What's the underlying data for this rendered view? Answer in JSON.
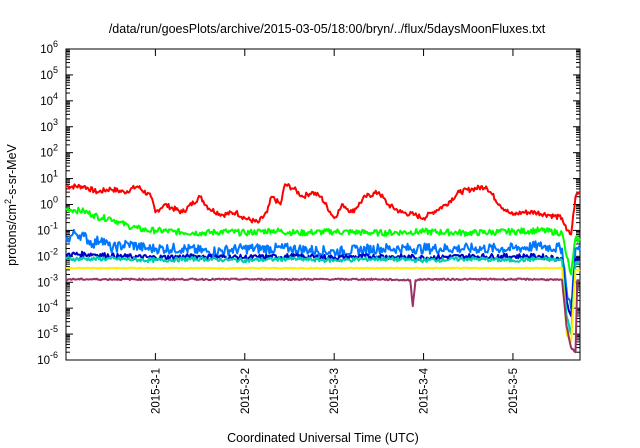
{
  "chart_data": {
    "type": "line",
    "title": "/data/run/goesPlots/archive/2015-03-05/18:00/bryn/../flux/5daysMoonFluxes.txt",
    "xlabel": "Coordinated Universal Time (UTC)",
    "ylabel_parts": [
      "protons/cm",
      "2",
      "-s-sr-MeV"
    ],
    "y_scale": "log",
    "ylim": [
      1e-06,
      1000000.0
    ],
    "y_ticks": [
      {
        "base": "10",
        "exp": "-6",
        "value": 1e-06
      },
      {
        "base": "10",
        "exp": "-5",
        "value": 1e-05
      },
      {
        "base": "10",
        "exp": "-4",
        "value": 0.0001
      },
      {
        "base": "10",
        "exp": "-3",
        "value": 0.001
      },
      {
        "base": "10",
        "exp": "-2",
        "value": 0.01
      },
      {
        "base": "10",
        "exp": "-1",
        "value": 0.1
      },
      {
        "base": "10",
        "exp": "0",
        "value": 1
      },
      {
        "base": "10",
        "exp": "1",
        "value": 10
      },
      {
        "base": "10",
        "exp": "2",
        "value": 100
      },
      {
        "base": "10",
        "exp": "3",
        "value": 1000
      },
      {
        "base": "10",
        "exp": "4",
        "value": 10000
      },
      {
        "base": "10",
        "exp": "5",
        "value": 100000
      },
      {
        "base": "10",
        "exp": "6",
        "value": 1000000
      }
    ],
    "xlim": [
      0.0,
      5.75
    ],
    "x_ticks": [
      {
        "label": "2015-3-1",
        "value": 1.0
      },
      {
        "label": "2015-3-2",
        "value": 2.0
      },
      {
        "label": "2015-3-3",
        "value": 3.0
      },
      {
        "label": "2015-3-4",
        "value": 4.0
      },
      {
        "label": "2015-3-5",
        "value": 5.0
      }
    ],
    "grid": false,
    "series": [
      {
        "color": "#ff0000",
        "x": [
          0.0,
          0.2,
          0.35,
          0.5,
          0.65,
          0.8,
          0.95,
          1.0,
          1.1,
          1.3,
          1.5,
          1.6,
          1.75,
          1.9,
          2.0,
          2.15,
          2.25,
          2.3,
          2.4,
          2.45,
          2.55,
          2.65,
          2.75,
          2.85,
          3.0,
          3.1,
          3.2,
          3.35,
          3.5,
          3.6,
          3.75,
          3.9,
          4.0,
          4.1,
          4.25,
          4.4,
          4.55,
          4.7,
          4.85,
          4.95,
          5.0,
          5.1,
          5.25,
          5.4,
          5.55,
          5.6,
          5.65,
          5.7,
          5.75
        ],
        "y": [
          5,
          5,
          3,
          4,
          3,
          5,
          2,
          0.5,
          1,
          0.5,
          2,
          0.7,
          0.4,
          0.5,
          0.3,
          0.2,
          0.5,
          2,
          1,
          6,
          4,
          2,
          3,
          2,
          0.3,
          1,
          0.5,
          2,
          3,
          1,
          0.5,
          0.4,
          0.3,
          0.5,
          1,
          3,
          4,
          5,
          1,
          0.5,
          0.4,
          0.5,
          0.5,
          0.4,
          0.3,
          0.1,
          0.07,
          2,
          3
        ]
      },
      {
        "color": "#00ff00",
        "x": [
          0.0,
          0.1,
          0.2,
          0.3,
          0.4,
          0.5,
          0.6,
          0.7,
          0.8,
          0.9,
          1.0,
          1.2,
          1.5,
          1.8,
          2.0,
          2.3,
          2.6,
          3.0,
          3.5,
          4.0,
          4.5,
          5.0,
          5.3,
          5.55,
          5.6,
          5.65,
          5.7,
          5.75
        ],
        "y": [
          0.7,
          0.6,
          0.55,
          0.4,
          0.3,
          0.3,
          0.2,
          0.15,
          0.12,
          0.1,
          0.1,
          0.09,
          0.08,
          0.09,
          0.08,
          0.1,
          0.08,
          0.09,
          0.08,
          0.09,
          0.08,
          0.09,
          0.1,
          0.08,
          0.01,
          0.002,
          0.05,
          0.04
        ]
      },
      {
        "color": "#0077ff",
        "x": [
          0.0,
          0.1,
          0.2,
          0.3,
          0.4,
          0.5,
          0.7,
          0.9,
          1.0,
          1.3,
          1.6,
          2.0,
          2.5,
          3.0,
          3.5,
          4.0,
          4.5,
          5.0,
          5.3,
          5.55,
          5.6,
          5.65,
          5.7,
          5.75
        ],
        "y": [
          0.04,
          0.08,
          0.06,
          0.03,
          0.05,
          0.02,
          0.03,
          0.02,
          0.02,
          0.02,
          0.015,
          0.02,
          0.02,
          0.015,
          0.02,
          0.02,
          0.02,
          0.02,
          0.025,
          0.02,
          0.0005,
          0.0001,
          0.02,
          0.015
        ]
      },
      {
        "color": "#0000cc",
        "x": [
          0.0,
          0.3,
          0.6,
          1.0,
          1.5,
          2.0,
          2.5,
          3.0,
          3.5,
          4.0,
          4.5,
          5.0,
          5.3,
          5.55,
          5.6,
          5.65,
          5.7,
          5.75
        ],
        "y": [
          0.012,
          0.012,
          0.01,
          0.009,
          0.01,
          0.009,
          0.01,
          0.009,
          0.01,
          0.009,
          0.01,
          0.01,
          0.01,
          0.008,
          0.0002,
          5e-05,
          0.008,
          0.008
        ]
      },
      {
        "color": "#00ccaa",
        "x": [
          0.0,
          0.5,
          1.0,
          1.5,
          2.0,
          2.5,
          3.0,
          3.5,
          4.0,
          4.5,
          5.0,
          5.3,
          5.55,
          5.6,
          5.65,
          5.7,
          5.75
        ],
        "y": [
          0.008,
          0.008,
          0.007,
          0.008,
          0.007,
          0.008,
          0.007,
          0.008,
          0.007,
          0.008,
          0.007,
          0.008,
          0.007,
          5e-05,
          1e-05,
          0.006,
          0.006
        ]
      },
      {
        "color": "#ffee00",
        "x": [
          0.0,
          0.5,
          1.0,
          1.5,
          2.0,
          2.5,
          3.0,
          3.5,
          4.0,
          4.5,
          5.0,
          5.3,
          5.55,
          5.6,
          5.65,
          5.7,
          5.75
        ],
        "y": [
          0.0035,
          0.0035,
          0.0035,
          0.0035,
          0.0035,
          0.0035,
          0.0035,
          0.0035,
          0.0035,
          0.0035,
          0.0035,
          0.0035,
          0.0035,
          1e-05,
          5e-06,
          0.003,
          0.003
        ]
      },
      {
        "color": "#993366",
        "x": [
          0.0,
          0.5,
          1.0,
          1.5,
          2.0,
          2.5,
          3.0,
          3.5,
          3.85,
          3.88,
          3.91,
          4.0,
          4.5,
          5.0,
          5.3,
          5.55,
          5.6,
          5.65,
          5.7,
          5.72,
          5.75
        ],
        "y": [
          0.0013,
          0.0013,
          0.0013,
          0.0013,
          0.0013,
          0.0013,
          0.0013,
          0.0013,
          0.0012,
          0.00012,
          0.0012,
          0.0013,
          0.0013,
          0.0013,
          0.0013,
          0.0012,
          2e-05,
          3e-06,
          2e-06,
          0.0012,
          0.0012
        ]
      }
    ]
  }
}
